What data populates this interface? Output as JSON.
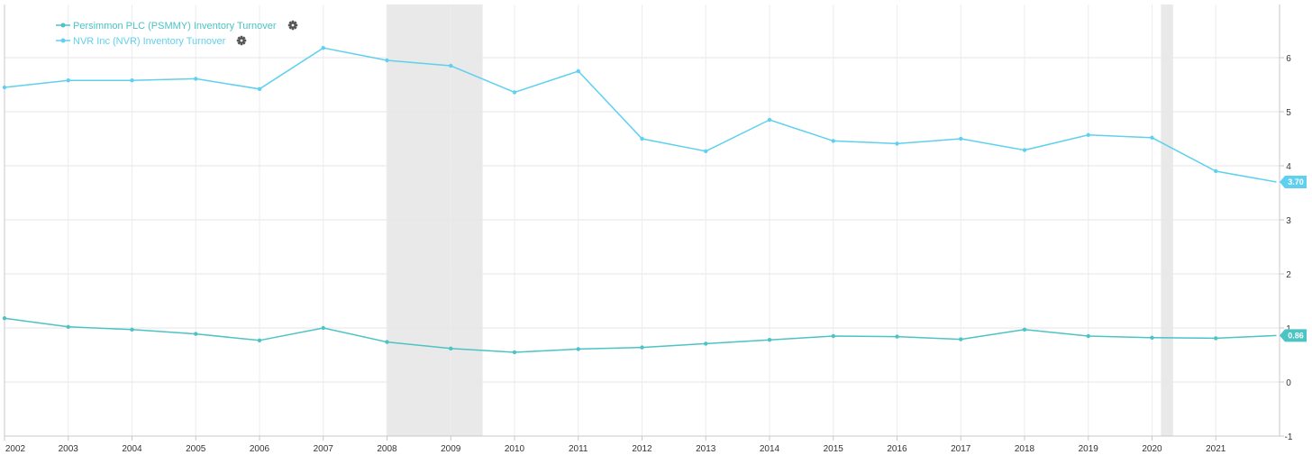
{
  "chart_data": {
    "type": "line",
    "x": [
      "2002",
      "2003",
      "2004",
      "2005",
      "2006",
      "2007",
      "2008",
      "2009",
      "2010",
      "2011",
      "2012",
      "2013",
      "2014",
      "2015",
      "2016",
      "2017",
      "2018",
      "2019",
      "2020",
      "2021",
      "2022"
    ],
    "xticks": [
      "2002",
      "2003",
      "2004",
      "2005",
      "2006",
      "2007",
      "2008",
      "2009",
      "2010",
      "2011",
      "2012",
      "2013",
      "2014",
      "2015",
      "2016",
      "2017",
      "2018",
      "2019",
      "2020",
      "2021"
    ],
    "ylim": [
      -1,
      7
    ],
    "yticks": [
      "-1",
      "0",
      "1",
      "2",
      "3",
      "4",
      "5",
      "6"
    ],
    "grid": true,
    "legend_position": "top-left",
    "recession_shading": [
      {
        "start": "2007.99",
        "end": "2009.5"
      },
      {
        "start": "2020.14",
        "end": "2020.33"
      }
    ],
    "series": [
      {
        "name": "Persimmon PLC (PSMMY) Inventory Turnover",
        "color": "#4cc3c4",
        "last_value_label": "0.86",
        "points": [
          [
            2002.0,
            1.18
          ],
          [
            2003.0,
            1.02
          ],
          [
            2004.0,
            0.97
          ],
          [
            2005.0,
            0.89
          ],
          [
            2006.0,
            0.77
          ],
          [
            2007.0,
            1.0
          ],
          [
            2008.0,
            0.74
          ],
          [
            2009.0,
            0.62
          ],
          [
            2010.0,
            0.55
          ],
          [
            2011.0,
            0.61
          ],
          [
            2012.0,
            0.64
          ],
          [
            2013.0,
            0.71
          ],
          [
            2014.0,
            0.78
          ],
          [
            2015.0,
            0.85
          ],
          [
            2016.0,
            0.84
          ],
          [
            2017.0,
            0.79
          ],
          [
            2018.0,
            0.97
          ],
          [
            2019.0,
            0.85
          ],
          [
            2020.0,
            0.82
          ],
          [
            2021.0,
            0.81
          ],
          [
            2021.95,
            0.86
          ]
        ]
      },
      {
        "name": "NVR Inc (NVR) Inventory Turnover",
        "color": "#5fd0ef",
        "last_value_label": "3.70",
        "points": [
          [
            2002.0,
            5.45
          ],
          [
            2003.0,
            5.58
          ],
          [
            2004.0,
            5.58
          ],
          [
            2005.0,
            5.61
          ],
          [
            2006.0,
            5.42
          ],
          [
            2007.0,
            6.18
          ],
          [
            2008.0,
            5.95
          ],
          [
            2009.0,
            5.85
          ],
          [
            2010.0,
            5.36
          ],
          [
            2011.0,
            5.75
          ],
          [
            2012.0,
            4.5
          ],
          [
            2013.0,
            4.27
          ],
          [
            2014.0,
            4.85
          ],
          [
            2015.0,
            4.46
          ],
          [
            2016.0,
            4.41
          ],
          [
            2017.0,
            4.5
          ],
          [
            2018.0,
            4.29
          ],
          [
            2019.0,
            4.57
          ],
          [
            2020.0,
            4.52
          ],
          [
            2021.0,
            3.9
          ],
          [
            2021.95,
            3.7
          ]
        ]
      }
    ]
  },
  "icons": {
    "legend_settings": "gear-icon"
  }
}
